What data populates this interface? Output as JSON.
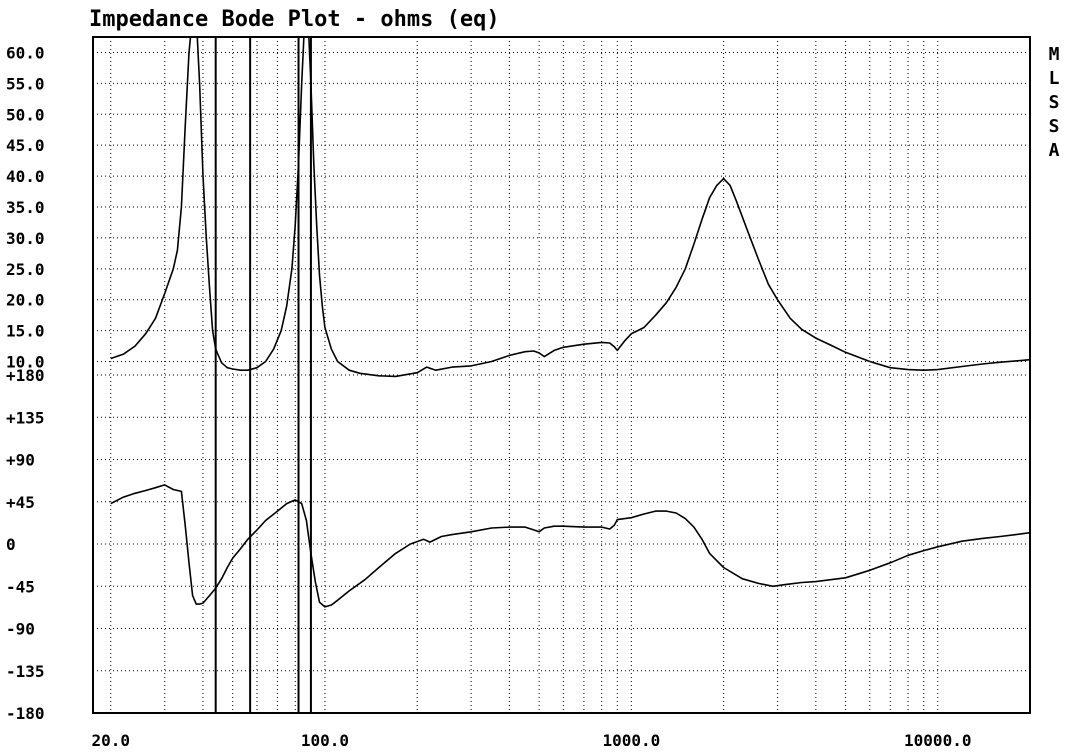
{
  "chart_data": {
    "type": "line",
    "title": "Impedance Bode Plot - ohms (eq)",
    "side_label": [
      "M",
      "L",
      "S",
      "S",
      "A"
    ],
    "x_scale": "log",
    "x_range": [
      17.5,
      20000
    ],
    "x_tick_labels": [
      "20.0",
      "100.0",
      "1000.0",
      "10000.0"
    ],
    "x_tick_values": [
      20,
      100,
      1000,
      10000
    ],
    "magnitude_axis": {
      "range": [
        7.5,
        62.5
      ],
      "tick_values": [
        10,
        15,
        20,
        25,
        30,
        35,
        40,
        45,
        50,
        55,
        60
      ],
      "tick_labels": [
        "10.0",
        "15.0",
        "20.0",
        "25.0",
        "30.0",
        "35.0",
        "40.0",
        "45.0",
        "50.0",
        "55.0",
        "60.0"
      ]
    },
    "phase_axis": {
      "range": [
        -180,
        180
      ],
      "tick_values": [
        -180,
        -135,
        -90,
        -45,
        0,
        45,
        90,
        135,
        180
      ],
      "tick_labels": [
        "-180",
        "-135",
        "-90",
        "-45",
        "0",
        "+45",
        "+90",
        "+135",
        "+180"
      ]
    },
    "cursor_lines_x": [
      44,
      57,
      82,
      90
    ],
    "grid": true,
    "series": [
      {
        "axis": "magnitude",
        "points": [
          [
            20,
            10.5
          ],
          [
            22,
            11.2
          ],
          [
            24,
            12.5
          ],
          [
            26,
            14.5
          ],
          [
            28,
            17
          ],
          [
            30,
            21
          ],
          [
            32,
            25
          ],
          [
            33,
            28
          ],
          [
            34,
            35
          ],
          [
            35,
            48
          ],
          [
            36,
            60
          ],
          [
            37,
            66
          ],
          [
            38,
            66
          ],
          [
            39,
            55
          ],
          [
            40,
            40
          ],
          [
            41,
            30
          ],
          [
            42,
            22
          ],
          [
            43,
            15
          ],
          [
            44,
            12
          ],
          [
            46,
            9.8
          ],
          [
            48,
            9
          ],
          [
            50,
            8.8
          ],
          [
            53,
            8.6
          ],
          [
            56,
            8.6
          ],
          [
            60,
            9
          ],
          [
            64,
            10
          ],
          [
            68,
            12
          ],
          [
            72,
            15
          ],
          [
            75,
            19
          ],
          [
            78,
            25
          ],
          [
            80,
            32
          ],
          [
            82,
            42
          ],
          [
            84,
            55
          ],
          [
            86,
            66
          ],
          [
            88,
            66
          ],
          [
            90,
            55
          ],
          [
            92,
            42
          ],
          [
            94,
            32
          ],
          [
            96,
            24
          ],
          [
            98,
            19
          ],
          [
            100,
            15.5
          ],
          [
            105,
            12
          ],
          [
            110,
            10
          ],
          [
            120,
            8.6
          ],
          [
            130,
            8.1
          ],
          [
            150,
            7.7
          ],
          [
            170,
            7.6
          ],
          [
            200,
            8.2
          ],
          [
            215,
            9.1
          ],
          [
            230,
            8.6
          ],
          [
            260,
            9.1
          ],
          [
            300,
            9.3
          ],
          [
            350,
            10
          ],
          [
            400,
            11
          ],
          [
            450,
            11.6
          ],
          [
            480,
            11.7
          ],
          [
            500,
            11.4
          ],
          [
            520,
            10.8
          ],
          [
            560,
            11.8
          ],
          [
            600,
            12.3
          ],
          [
            700,
            12.8
          ],
          [
            800,
            13.1
          ],
          [
            850,
            13
          ],
          [
            880,
            12.4
          ],
          [
            900,
            11.8
          ],
          [
            950,
            13.3
          ],
          [
            1000,
            14.5
          ],
          [
            1100,
            15.5
          ],
          [
            1200,
            17.5
          ],
          [
            1300,
            19.5
          ],
          [
            1400,
            22
          ],
          [
            1500,
            25
          ],
          [
            1600,
            29
          ],
          [
            1700,
            33
          ],
          [
            1800,
            36.5
          ],
          [
            1900,
            38.5
          ],
          [
            2000,
            39.6
          ],
          [
            2100,
            38.5
          ],
          [
            2200,
            36
          ],
          [
            2400,
            31
          ],
          [
            2600,
            26.5
          ],
          [
            2800,
            22.5
          ],
          [
            3000,
            20
          ],
          [
            3300,
            17
          ],
          [
            3600,
            15.2
          ],
          [
            4000,
            13.8
          ],
          [
            4500,
            12.6
          ],
          [
            5000,
            11.5
          ],
          [
            6000,
            10
          ],
          [
            7000,
            9
          ],
          [
            8000,
            8.7
          ],
          [
            9000,
            8.6
          ],
          [
            10000,
            8.7
          ],
          [
            12000,
            9.2
          ],
          [
            14000,
            9.6
          ],
          [
            16000,
            9.9
          ],
          [
            18000,
            10.1
          ],
          [
            20000,
            10.3
          ]
        ]
      },
      {
        "axis": "phase",
        "points": [
          [
            20,
            43
          ],
          [
            22,
            50
          ],
          [
            24,
            54
          ],
          [
            26,
            57
          ],
          [
            28,
            60
          ],
          [
            30,
            63
          ],
          [
            32,
            58
          ],
          [
            34,
            56
          ],
          [
            35,
            20
          ],
          [
            36,
            -20
          ],
          [
            37,
            -55
          ],
          [
            38,
            -64
          ],
          [
            39,
            -64
          ],
          [
            40,
            -63
          ],
          [
            42,
            -55
          ],
          [
            44,
            -47
          ],
          [
            46,
            -37
          ],
          [
            48,
            -25
          ],
          [
            50,
            -15
          ],
          [
            53,
            -5
          ],
          [
            56,
            5
          ],
          [
            60,
            15
          ],
          [
            64,
            25
          ],
          [
            70,
            35
          ],
          [
            75,
            43
          ],
          [
            80,
            47
          ],
          [
            84,
            43
          ],
          [
            87,
            25
          ],
          [
            90,
            -10
          ],
          [
            93,
            -40
          ],
          [
            96,
            -62
          ],
          [
            100,
            -67
          ],
          [
            105,
            -65
          ],
          [
            110,
            -60
          ],
          [
            120,
            -50
          ],
          [
            135,
            -38
          ],
          [
            150,
            -25
          ],
          [
            170,
            -10
          ],
          [
            190,
            0
          ],
          [
            210,
            5
          ],
          [
            220,
            2
          ],
          [
            240,
            8
          ],
          [
            260,
            10
          ],
          [
            300,
            13
          ],
          [
            350,
            17
          ],
          [
            400,
            18
          ],
          [
            450,
            18
          ],
          [
            480,
            15
          ],
          [
            500,
            13
          ],
          [
            520,
            17
          ],
          [
            560,
            19
          ],
          [
            600,
            19
          ],
          [
            700,
            18
          ],
          [
            800,
            18
          ],
          [
            850,
            16
          ],
          [
            880,
            20
          ],
          [
            900,
            26
          ],
          [
            1000,
            28
          ],
          [
            1100,
            32
          ],
          [
            1200,
            35
          ],
          [
            1300,
            35
          ],
          [
            1400,
            33
          ],
          [
            1500,
            27
          ],
          [
            1600,
            18
          ],
          [
            1700,
            5
          ],
          [
            1800,
            -10
          ],
          [
            2000,
            -25
          ],
          [
            2300,
            -37
          ],
          [
            2600,
            -42
          ],
          [
            2900,
            -45
          ],
          [
            3200,
            -43
          ],
          [
            3600,
            -41
          ],
          [
            4000,
            -40
          ],
          [
            5000,
            -36
          ],
          [
            6000,
            -28
          ],
          [
            7000,
            -20
          ],
          [
            8000,
            -12
          ],
          [
            9000,
            -7
          ],
          [
            10000,
            -3
          ],
          [
            12000,
            3
          ],
          [
            14000,
            6
          ],
          [
            16000,
            8
          ],
          [
            18000,
            10
          ],
          [
            20000,
            12
          ]
        ]
      }
    ]
  }
}
